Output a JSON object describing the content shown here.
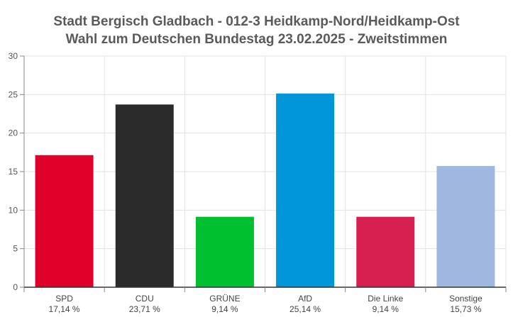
{
  "chart_data": {
    "type": "bar",
    "title": "Stadt Bergisch Gladbach - 012-3 Heidkamp-Nord/Heidkamp-Ost",
    "subtitle": "Wahl zum Deutschen Bundestag 23.02.2025  - Zweitstimmen",
    "xlabel": "",
    "ylabel": "",
    "ylim": [
      0,
      30
    ],
    "yticks": [
      "0",
      "5",
      "10",
      "15",
      "20",
      "25",
      "30"
    ],
    "grid": true,
    "categories": [
      "SPD",
      "CDU",
      "GRÜNE",
      "AfD",
      "Die Linke",
      "Sonstige"
    ],
    "value_labels": [
      "17,14 %",
      "23,71 %",
      "9,14 %",
      "25,14 %",
      "9,14 %",
      "15,73 %"
    ],
    "values": [
      17.14,
      23.71,
      9.14,
      25.14,
      9.14,
      15.73
    ],
    "colors": [
      "#e0002a",
      "#2b2b2b",
      "#00c030",
      "#0096d8",
      "#d82050",
      "#a0b8e0"
    ]
  }
}
